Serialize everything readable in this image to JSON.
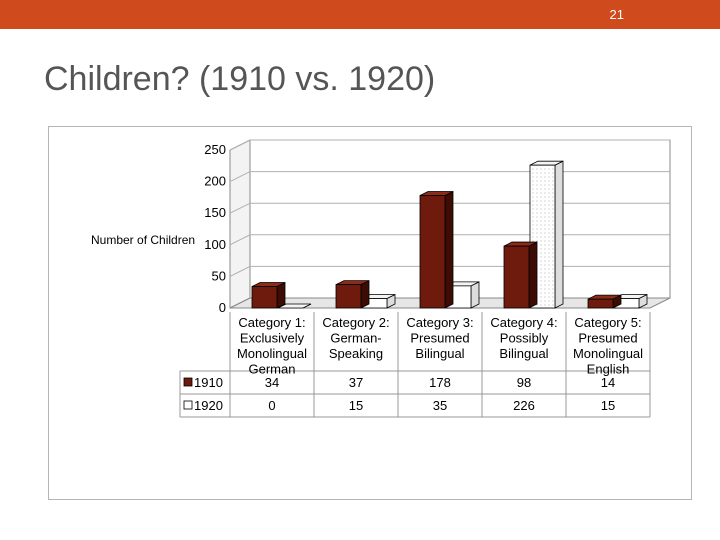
{
  "slide": {
    "page_number": "21",
    "title": "Children? (1910 vs. 1920)"
  },
  "colors": {
    "topbar": "#cf4a1d",
    "series_1910": "#6e1a0c",
    "series_1920": "#ffffff",
    "frame": "#b5b5b5"
  },
  "chart_data": {
    "type": "bar",
    "style": "3d-clustered-column",
    "ylabel": "Number of Children",
    "xlabel": "",
    "ylim": [
      0,
      250
    ],
    "yticks": [
      0,
      50,
      100,
      150,
      200,
      250
    ],
    "grid": true,
    "legend": "data-table",
    "categories": [
      {
        "lines": [
          "Category 1:",
          "Exclusively",
          "Monolingual",
          "German"
        ]
      },
      {
        "lines": [
          "Category 2:",
          "German-",
          "Speaking"
        ]
      },
      {
        "lines": [
          "Category 3:",
          "Presumed",
          "Bilingual"
        ]
      },
      {
        "lines": [
          "Category 4:",
          "Possibly",
          "Bilingual"
        ]
      },
      {
        "lines": [
          "Category 5:",
          "Presumed",
          "Monolingual",
          "English"
        ]
      }
    ],
    "series": [
      {
        "name": "1910",
        "values": [
          34,
          37,
          178,
          98,
          14
        ]
      },
      {
        "name": "1920",
        "values": [
          0,
          15,
          35,
          226,
          15
        ]
      }
    ]
  }
}
